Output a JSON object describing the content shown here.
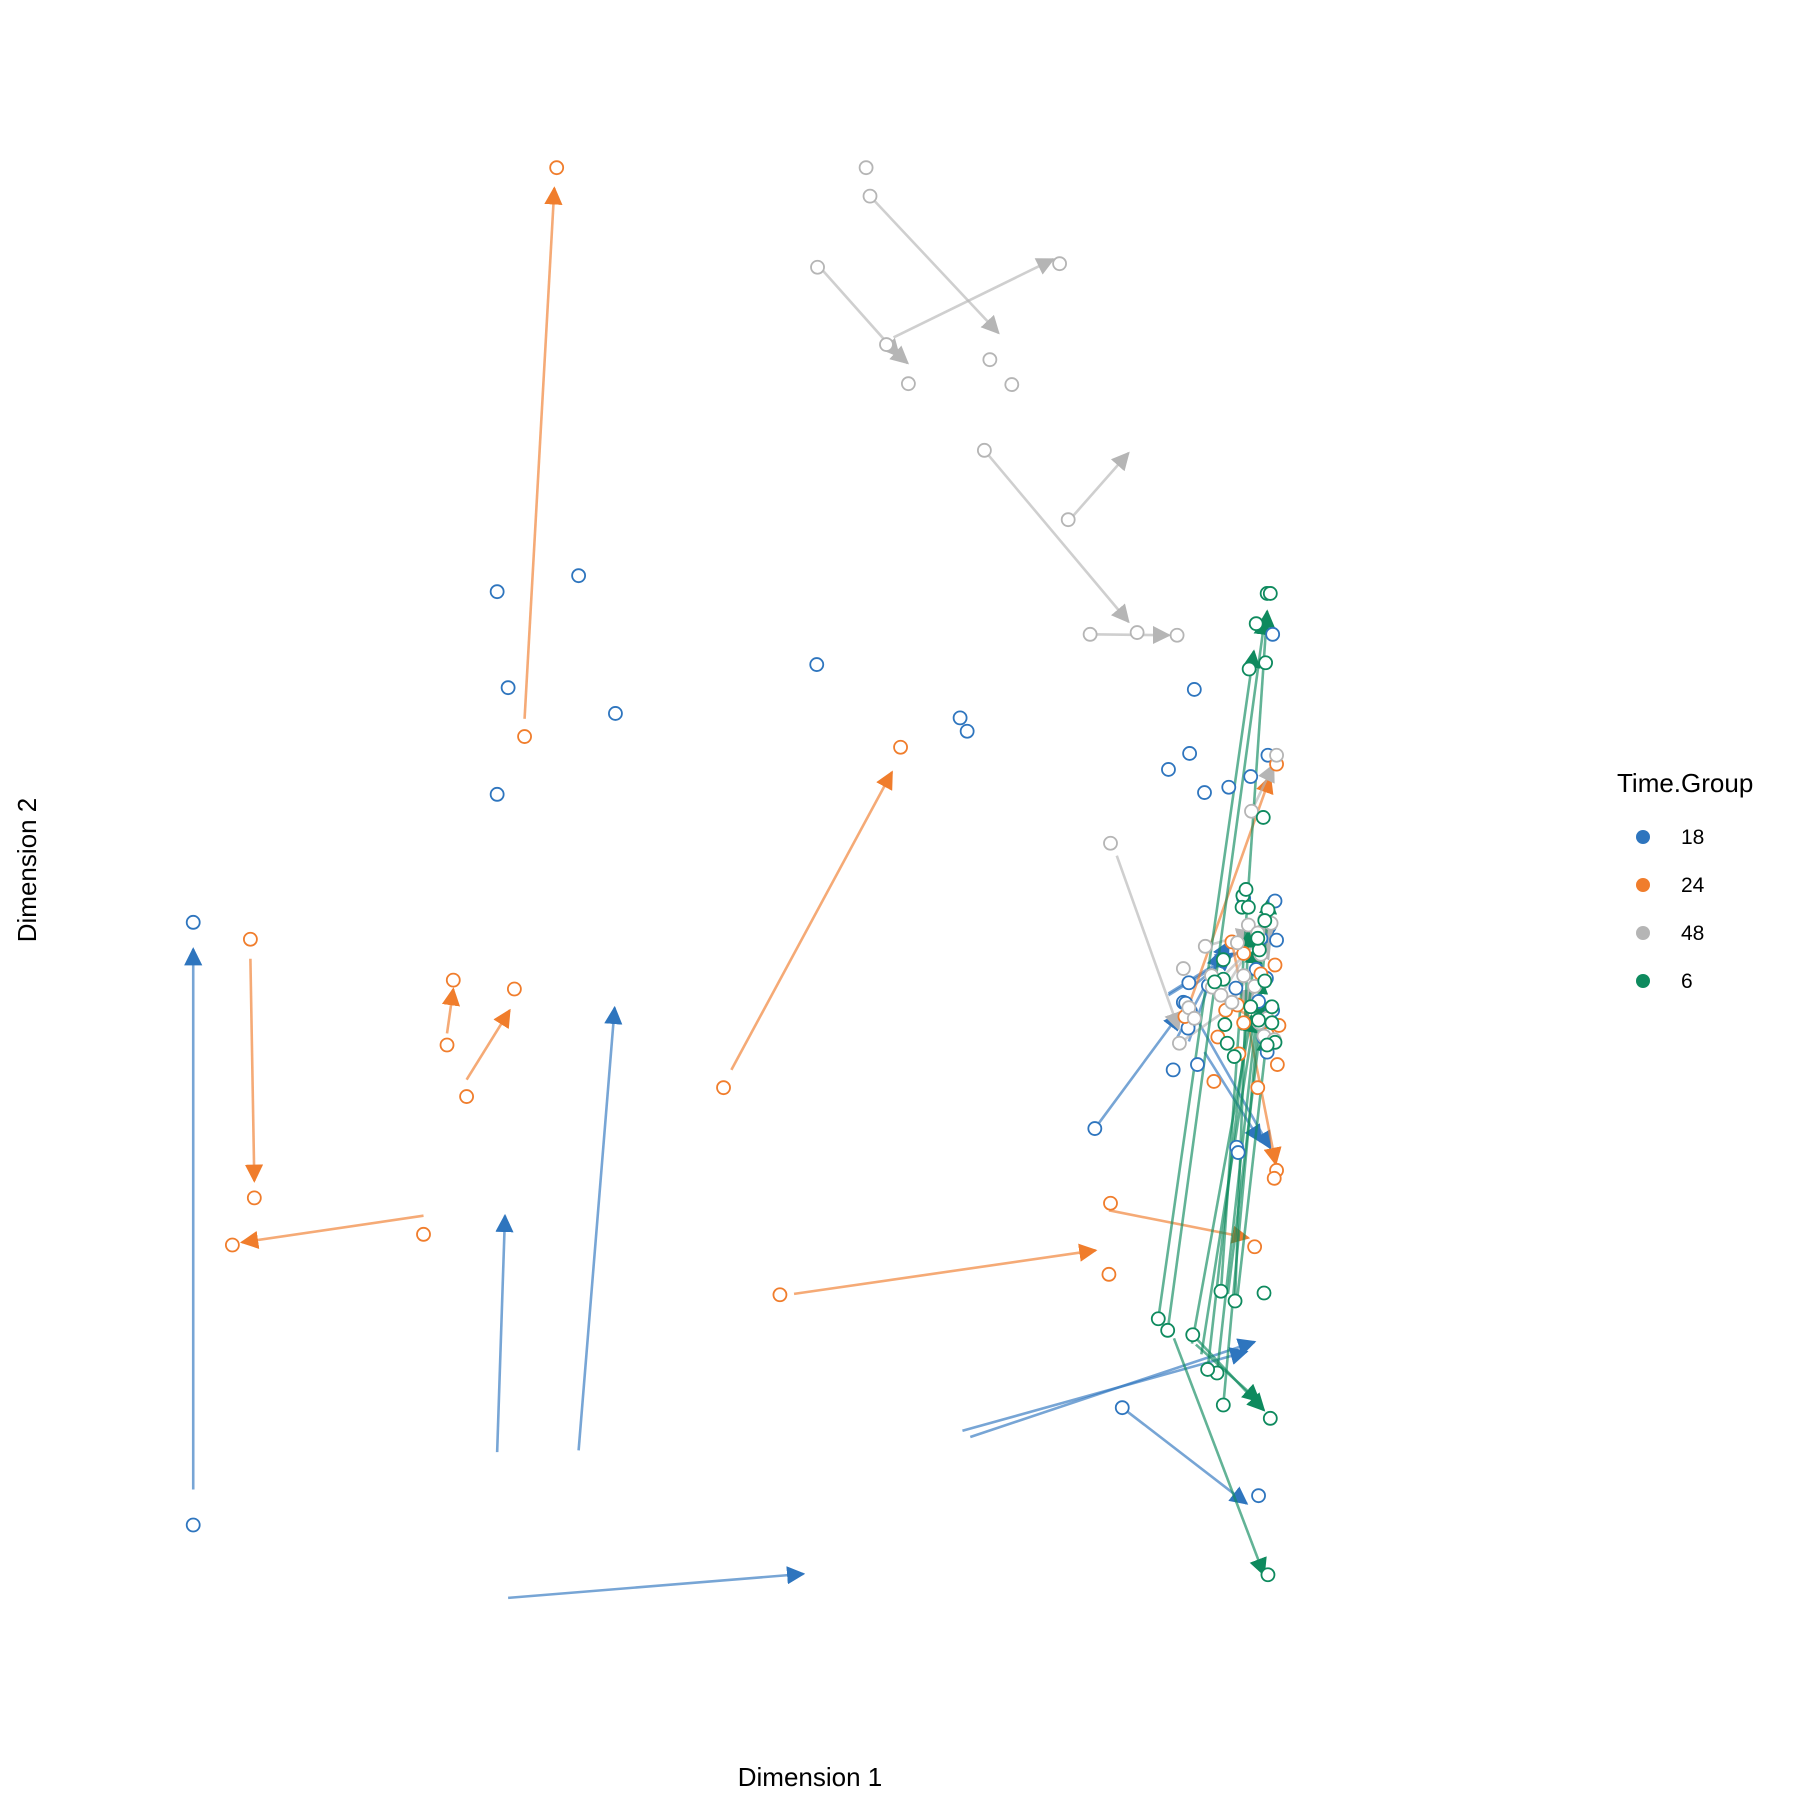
{
  "chart_data": {
    "type": "scatter",
    "subtype": "arrow-trajectory",
    "xlabel": "Dimension 1",
    "ylabel": "Dimension 2",
    "xlim": [
      0,
      1800
    ],
    "ylim": [
      0,
      1800
    ],
    "show_tick_labels": false,
    "grid": false,
    "legend": {
      "title": "Time.Group",
      "position": "right",
      "entries": [
        {
          "label": "18",
          "color": "#2E75BE"
        },
        {
          "label": "24",
          "color": "#F07D2C"
        },
        {
          "label": "48",
          "color": "#B5B5B5"
        },
        {
          "label": "6",
          "color": "#0E8A5E"
        }
      ]
    },
    "series": [
      {
        "name": "18",
        "color": "#2E75BE",
        "points": [
          [
            119,
            858
          ],
          [
            119,
            180
          ],
          [
            507,
            1002
          ],
          [
            507,
            1230
          ],
          [
            611,
            1248
          ],
          [
            658,
            1093
          ],
          [
            521,
            1122
          ],
          [
            915,
            1148
          ],
          [
            1270,
            626
          ],
          [
            1391,
            1048
          ],
          [
            1364,
            1030
          ],
          [
            1370,
            692
          ],
          [
            1390,
            790
          ],
          [
            1397,
            1120
          ],
          [
            1451,
            605
          ],
          [
            1453,
            599
          ],
          [
            1410,
            1004
          ],
          [
            1388,
            754
          ],
          [
            1491,
            1046
          ],
          [
            1497,
            1182
          ],
          [
            1441,
            1010
          ],
          [
            1098,
            1088
          ],
          [
            1107,
            1073
          ],
          [
            1469,
            1022
          ],
          [
            1305,
            312
          ],
          [
            1479,
            213
          ],
          [
            1389,
            739
          ],
          [
            1383,
            768
          ],
          [
            1401,
            698
          ],
          [
            1392,
            758
          ],
          [
            1500,
            882
          ],
          [
            1386,
            767
          ],
          [
            1460,
            885
          ],
          [
            1479,
            769
          ],
          [
            1490,
            712
          ],
          [
            1496,
            760
          ],
          [
            1502,
            838
          ],
          [
            1476,
            805
          ],
          [
            1415,
            787
          ],
          [
            1450,
            784
          ],
          [
            1486,
            728
          ],
          [
            1482,
            840
          ],
          [
            1489,
            795
          ],
          [
            1497,
            759
          ]
        ],
        "arrows": [
          [
            [
              119,
              220
            ],
            [
              119,
              828
            ]
          ],
          [
            [
              507,
              262
            ],
            [
              517,
              528
            ]
          ],
          [
            [
              611,
              264
            ],
            [
              657,
              762
            ]
          ],
          [
            [
              521,
              98
            ],
            [
              898,
              125
            ]
          ],
          [
            [
              1270,
              626
            ],
            [
              1379,
              756
            ]
          ],
          [
            [
              1364,
              778
            ],
            [
              1446,
              823
            ]
          ],
          [
            [
              1370,
              720
            ],
            [
              1441,
              836
            ]
          ],
          [
            [
              1390,
              724
            ],
            [
              1431,
              826
            ]
          ],
          [
            [
              1391,
              783
            ],
            [
              1445,
              822
            ]
          ],
          [
            [
              1101,
              286
            ],
            [
              1464,
              375
            ]
          ],
          [
            [
              1111,
              279
            ],
            [
              1474,
              386
            ]
          ],
          [
            [
              1305,
              312
            ],
            [
              1464,
              204
            ]
          ],
          [
            [
              1397,
              754
            ],
            [
              1494,
              604
            ]
          ],
          [
            [
              1410,
              712
            ],
            [
              1482,
              611
            ]
          ],
          [
            [
              1364,
              776
            ],
            [
              1500,
              850
            ]
          ]
        ]
      },
      {
        "name": "24",
        "color": "#F07D2C",
        "points": [
          [
            583,
            1707
          ],
          [
            542,
            1067
          ],
          [
            192,
            839
          ],
          [
            197,
            548
          ],
          [
            169,
            495
          ],
          [
            413,
            507
          ],
          [
            443,
            720
          ],
          [
            451,
            793
          ],
          [
            529,
            783
          ],
          [
            468,
            662
          ],
          [
            1022,
            1055
          ],
          [
            796,
            672
          ],
          [
            868,
            439
          ],
          [
            1288,
            462
          ],
          [
            1290,
            542
          ],
          [
            1474,
            493
          ],
          [
            1502,
            1036
          ],
          [
            1385,
            752
          ],
          [
            1445,
            836
          ],
          [
            1422,
            679
          ],
          [
            1427,
            729
          ],
          [
            1437,
            759
          ],
          [
            1452,
            765
          ],
          [
            1460,
            823
          ],
          [
            1482,
            800
          ],
          [
            1500,
            810
          ],
          [
            1503,
            698
          ],
          [
            1505,
            742
          ],
          [
            1490,
            732
          ],
          [
            1478,
            672
          ],
          [
            1502,
            579
          ],
          [
            1499,
            570
          ],
          [
            1454,
            710
          ],
          [
            1460,
            745
          ]
        ],
        "arrows": [
          [
            [
              542,
              1087
            ],
            [
              580,
              1684
            ]
          ],
          [
            [
              192,
              817
            ],
            [
              197,
              567
            ]
          ],
          [
            [
              413,
              528
            ],
            [
              181,
              498
            ]
          ],
          [
            [
              443,
              733
            ],
            [
              451,
              783
            ]
          ],
          [
            [
              468,
              681
            ],
            [
              523,
              759
            ]
          ],
          [
            [
              806,
              692
            ],
            [
              1011,
              1027
            ]
          ],
          [
            [
              886,
              440
            ],
            [
              1271,
              489
            ]
          ],
          [
            [
              1288,
              534
            ],
            [
              1466,
              503
            ]
          ],
          [
            [
              1385,
              752
            ],
            [
              1494,
              1022
            ]
          ],
          [
            [
              1445,
              836
            ],
            [
              1501,
              586
            ]
          ],
          [
            [
              1434,
              770
            ],
            [
              1496,
              737
            ]
          ]
        ]
      },
      {
        "name": "48",
        "color": "#B5B5B5",
        "points": [
          [
            978,
            1707
          ],
          [
            983,
            1675
          ],
          [
            916,
            1595
          ],
          [
            1004,
            1508
          ],
          [
            1225,
            1599
          ],
          [
            1032,
            1464
          ],
          [
            1136,
            1491
          ],
          [
            1164,
            1463
          ],
          [
            1129,
            1389
          ],
          [
            1236,
            1311
          ],
          [
            1264,
            1182
          ],
          [
            1324,
            1184
          ],
          [
            1375,
            1181
          ],
          [
            1290,
            947
          ],
          [
            1502,
            1046
          ],
          [
            1470,
            983
          ],
          [
            1383,
            806
          ],
          [
            1378,
            722
          ],
          [
            1411,
            831
          ],
          [
            1390,
            762
          ],
          [
            1420,
            785
          ],
          [
            1397,
            750
          ],
          [
            1466,
            855
          ],
          [
            1478,
            846
          ],
          [
            1482,
            822
          ],
          [
            1487,
            861
          ],
          [
            1452,
            835
          ],
          [
            1460,
            798
          ],
          [
            1474,
            786
          ],
          [
            1419,
            798
          ],
          [
            1431,
            776
          ],
          [
            1445,
            768
          ],
          [
            1495,
            857
          ],
          [
            1490,
            750
          ],
          [
            1480,
            745
          ],
          [
            1486,
            730
          ],
          [
            1499,
            726
          ]
        ],
        "arrows": [
          [
            [
              1004,
              1508
            ],
            [
              1031,
              1487
            ]
          ],
          [
            [
              922,
              1592
            ],
            [
              1020,
              1495
            ]
          ],
          [
            [
              983,
              1675
            ],
            [
              1147,
              1521
            ]
          ],
          [
            [
              1013,
              1516
            ],
            [
              1217,
              1604
            ]
          ],
          [
            [
              1129,
              1389
            ],
            [
              1313,
              1196
            ]
          ],
          [
            [
              1243,
              1316
            ],
            [
              1313,
              1386
            ]
          ],
          [
            [
              1264,
              1182
            ],
            [
              1365,
              1181
            ]
          ],
          [
            [
              1298,
              933
            ],
            [
              1377,
              738
            ]
          ],
          [
            [
              1420,
              785
            ],
            [
              1499,
              855
            ]
          ],
          [
            [
              1411,
              831
            ],
            [
              1472,
              847
            ]
          ],
          [
            [
              1445,
              768
            ],
            [
              1494,
              836
            ]
          ],
          [
            [
              1470,
              983
            ],
            [
              1498,
              1035
            ]
          ],
          [
            [
              1378,
              722
            ],
            [
              1476,
              783
            ]
          ],
          [
            [
              1431,
              776
            ],
            [
              1490,
              860
            ]
          ]
        ]
      },
      {
        "name": "6",
        "color": "#0E8A5E",
        "points": [
          [
            1490,
            1228
          ],
          [
            1494,
            1228
          ],
          [
            1476,
            1194
          ],
          [
            1467,
            1143
          ],
          [
            1488,
            1150
          ],
          [
            1485,
            976
          ],
          [
            1480,
            827
          ],
          [
            1434,
            816
          ],
          [
            1434,
            794
          ],
          [
            1496,
            745
          ],
          [
            1496,
            763
          ],
          [
            1487,
            792
          ],
          [
            1478,
            840
          ],
          [
            1459,
            888
          ],
          [
            1479,
            748
          ],
          [
            1500,
            723
          ],
          [
            1490,
            720
          ],
          [
            1363,
            399
          ],
          [
            1351,
            412
          ],
          [
            1431,
            443
          ],
          [
            1449,
            432
          ],
          [
            1486,
            441
          ],
          [
            1395,
            394
          ],
          [
            1426,
            351
          ],
          [
            1414,
            355
          ],
          [
            1434,
            315
          ],
          [
            1494,
            300
          ],
          [
            1491,
            124
          ],
          [
            1436,
            743
          ],
          [
            1448,
            707
          ],
          [
            1439,
            722
          ],
          [
            1469,
            763
          ],
          [
            1423,
            791
          ],
          [
            1458,
            875
          ],
          [
            1491,
            872
          ],
          [
            1466,
            875
          ],
          [
            1487,
            860
          ],
          [
            1463,
            895
          ]
        ],
        "arrows": [
          [
            [
              1395,
              394
            ],
            [
              1486,
              309
            ]
          ],
          [
            [
              1371,
              390
            ],
            [
              1486,
              124
            ]
          ],
          [
            [
              1399,
              383
            ],
            [
              1480,
              319
            ]
          ],
          [
            [
              1363,
              399
            ],
            [
              1487,
              1200
            ]
          ],
          [
            [
              1351,
              412
            ],
            [
              1473,
              1163
            ]
          ],
          [
            [
              1431,
              443
            ],
            [
              1490,
              1208
            ]
          ],
          [
            [
              1449,
              432
            ],
            [
              1466,
              848
            ]
          ],
          [
            [
              1426,
              351
            ],
            [
              1482,
              796
            ]
          ],
          [
            [
              1414,
              355
            ],
            [
              1475,
              830
            ]
          ],
          [
            [
              1434,
              315
            ],
            [
              1493,
              886
            ]
          ],
          [
            [
              1394,
              384
            ],
            [
              1470,
              753
            ]
          ],
          [
            [
              1440,
              440
            ],
            [
              1485,
              765
            ]
          ],
          [
            [
              1451,
              429
            ],
            [
              1490,
              731
            ]
          ],
          [
            [
              1406,
              372
            ],
            [
              1478,
              775
            ]
          ]
        ]
      }
    ]
  }
}
